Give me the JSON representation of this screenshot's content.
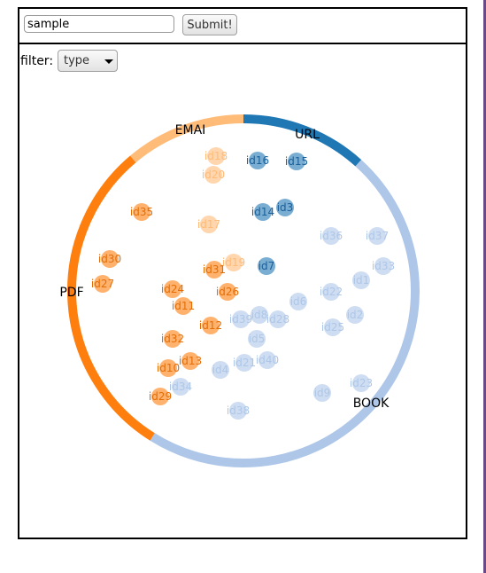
{
  "search": {
    "value": "sample"
  },
  "submit": {
    "label": "Submit!"
  },
  "filter": {
    "label": "filter:",
    "selected": "type"
  },
  "groups": [
    {
      "name": "URL",
      "color": "#1f77b4",
      "start": 0,
      "end": 42
    },
    {
      "name": "BOOK",
      "color": "#aec7e8",
      "start": 42,
      "end": 212
    },
    {
      "name": "PDF",
      "color": "#ff7f0e",
      "start": 212,
      "end": 320
    },
    {
      "name": "EMAI",
      "color": "#ffbb78",
      "start": 320,
      "end": 360
    }
  ],
  "nodes": [
    {
      "id": "id16",
      "group": "URL"
    },
    {
      "id": "id15",
      "group": "URL"
    },
    {
      "id": "id14",
      "group": "URL"
    },
    {
      "id": "id3",
      "group": "URL"
    },
    {
      "id": "id7",
      "group": "URL"
    },
    {
      "id": "id18",
      "group": "EMAI"
    },
    {
      "id": "id20",
      "group": "EMAI"
    },
    {
      "id": "id17",
      "group": "EMAI"
    },
    {
      "id": "id19",
      "group": "EMAI"
    },
    {
      "id": "id35",
      "group": "PDF"
    },
    {
      "id": "id30",
      "group": "PDF"
    },
    {
      "id": "id27",
      "group": "PDF"
    },
    {
      "id": "id31",
      "group": "PDF"
    },
    {
      "id": "id24",
      "group": "PDF"
    },
    {
      "id": "id26",
      "group": "PDF"
    },
    {
      "id": "id11",
      "group": "PDF"
    },
    {
      "id": "id12",
      "group": "PDF"
    },
    {
      "id": "id32",
      "group": "PDF"
    },
    {
      "id": "id13",
      "group": "PDF"
    },
    {
      "id": "id10",
      "group": "PDF"
    },
    {
      "id": "id29",
      "group": "PDF"
    },
    {
      "id": "id36",
      "group": "BOOK"
    },
    {
      "id": "id37",
      "group": "BOOK"
    },
    {
      "id": "id33",
      "group": "BOOK"
    },
    {
      "id": "id1",
      "group": "BOOK"
    },
    {
      "id": "id22",
      "group": "BOOK"
    },
    {
      "id": "id6",
      "group": "BOOK"
    },
    {
      "id": "id2",
      "group": "BOOK"
    },
    {
      "id": "id39",
      "group": "BOOK"
    },
    {
      "id": "id8",
      "group": "BOOK"
    },
    {
      "id": "id28",
      "group": "BOOK"
    },
    {
      "id": "id25",
      "group": "BOOK"
    },
    {
      "id": "id5",
      "group": "BOOK"
    },
    {
      "id": "id21",
      "group": "BOOK"
    },
    {
      "id": "id40",
      "group": "BOOK"
    },
    {
      "id": "id4",
      "group": "BOOK"
    },
    {
      "id": "id34",
      "group": "BOOK"
    },
    {
      "id": "id23",
      "group": "BOOK"
    },
    {
      "id": "id9",
      "group": "BOOK"
    },
    {
      "id": "id38",
      "group": "BOOK"
    }
  ]
}
